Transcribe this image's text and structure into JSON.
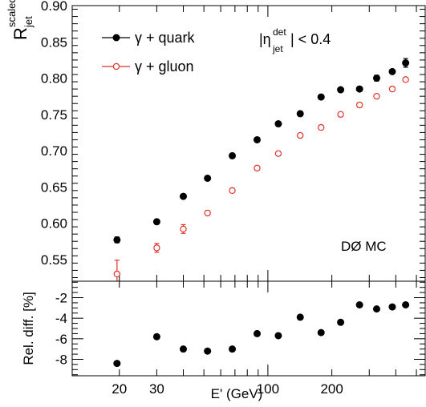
{
  "chart_data": [
    {
      "type": "scatter",
      "panel": "top",
      "ylabel": "R",
      "ylabel_sup": "scaled",
      "ylabel_sub": "jet",
      "xscale": "log",
      "xlim": [
        12,
        550
      ],
      "ylim": [
        0.52,
        0.9
      ],
      "yticks": [
        "0.55",
        "0.60",
        "0.65",
        "0.70",
        "0.75",
        "0.80",
        "0.85",
        "0.90"
      ],
      "annotation": {
        "pre": "|η",
        "sup": "det",
        "sub": "jet",
        "post": "| < 0.4"
      },
      "watermark": "DØ MC",
      "legend_position": "top-left",
      "series": [
        {
          "name": "γ + quark",
          "color": "#000000",
          "marker": "filled-circle",
          "points": [
            {
              "x": 19.5,
              "y": 0.577,
              "err": 0.004
            },
            {
              "x": 30,
              "y": 0.602,
              "err": 0.003
            },
            {
              "x": 40,
              "y": 0.637,
              "err": 0.003
            },
            {
              "x": 52,
              "y": 0.662,
              "err": 0.003
            },
            {
              "x": 68,
              "y": 0.693,
              "err": 0.003
            },
            {
              "x": 89,
              "y": 0.715,
              "err": 0.003
            },
            {
              "x": 112,
              "y": 0.737,
              "err": 0.003
            },
            {
              "x": 142,
              "y": 0.751,
              "err": 0.003
            },
            {
              "x": 178,
              "y": 0.774,
              "err": 0.003
            },
            {
              "x": 220,
              "y": 0.784,
              "err": 0.003
            },
            {
              "x": 270,
              "y": 0.785,
              "err": 0.003
            },
            {
              "x": 325,
              "y": 0.8,
              "err": 0.004
            },
            {
              "x": 385,
              "y": 0.809,
              "err": 0.003
            },
            {
              "x": 445,
              "y": 0.821,
              "err": 0.006
            }
          ]
        },
        {
          "name": "γ + gluon",
          "color": "#e0312b",
          "marker": "open-circle",
          "points": [
            {
              "x": 19.5,
              "y": 0.53,
              "err": 0.019
            },
            {
              "x": 30,
              "y": 0.566,
              "err": 0.006
            },
            {
              "x": 40,
              "y": 0.592,
              "err": 0.006
            },
            {
              "x": 52,
              "y": 0.614,
              "err": 0.003
            },
            {
              "x": 68,
              "y": 0.645,
              "err": 0.003
            },
            {
              "x": 89,
              "y": 0.676,
              "err": 0.003
            },
            {
              "x": 112,
              "y": 0.696,
              "err": 0.003
            },
            {
              "x": 142,
              "y": 0.721,
              "err": 0.003
            },
            {
              "x": 178,
              "y": 0.732,
              "err": 0.003
            },
            {
              "x": 220,
              "y": 0.75,
              "err": 0.003
            },
            {
              "x": 270,
              "y": 0.763,
              "err": 0.003
            },
            {
              "x": 325,
              "y": 0.775,
              "err": 0.003
            },
            {
              "x": 385,
              "y": 0.785,
              "err": 0.002
            },
            {
              "x": 445,
              "y": 0.798,
              "err": 0.002
            }
          ]
        }
      ]
    },
    {
      "type": "scatter",
      "panel": "bottom",
      "xlabel": "E' (GeV)",
      "ylabel": "Rel. diff. [%]",
      "xscale": "log",
      "xlim": [
        12,
        550
      ],
      "ylim": [
        -9.6,
        -0.4
      ],
      "xticks": [
        {
          "value": 20,
          "label": "20"
        },
        {
          "value": 30,
          "label": "30"
        },
        {
          "value": 100,
          "label": "100"
        },
        {
          "value": 200,
          "label": "200"
        }
      ],
      "yticks": [
        "-2",
        "-4",
        "-6",
        "-8"
      ],
      "series": [
        {
          "name": "",
          "color": "#000000",
          "marker": "filled-circle",
          "points": [
            {
              "x": 19.5,
              "y": -8.4
            },
            {
              "x": 30,
              "y": -5.8
            },
            {
              "x": 40,
              "y": -7.0
            },
            {
              "x": 52,
              "y": -7.2
            },
            {
              "x": 68,
              "y": -7.0
            },
            {
              "x": 89,
              "y": -5.5
            },
            {
              "x": 112,
              "y": -5.7
            },
            {
              "x": 142,
              "y": -3.9
            },
            {
              "x": 178,
              "y": -5.4
            },
            {
              "x": 220,
              "y": -4.4
            },
            {
              "x": 270,
              "y": -2.7
            },
            {
              "x": 325,
              "y": -3.1
            },
            {
              "x": 385,
              "y": -2.9
            },
            {
              "x": 445,
              "y": -2.7
            }
          ]
        }
      ]
    }
  ]
}
